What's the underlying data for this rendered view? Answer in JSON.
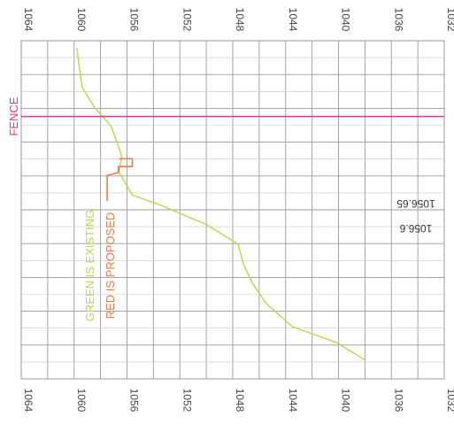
{
  "chart_data": {
    "type": "line",
    "orientation": "elevation-profile rotated 90 degrees (elevation axis across the sheet)",
    "elevation_ticks": [
      1064,
      1060,
      1056,
      1052,
      1048,
      1044,
      1040,
      1036,
      1032
    ],
    "elevation_range": [
      1064,
      1032
    ],
    "station_grid_rows": 10,
    "grid": true,
    "series": [
      {
        "label": "GREEN IS EXISTING",
        "color": "#b5d94a",
        "points": [
          {
            "station": 0.0,
            "elevation": 1059.8
          },
          {
            "station": 2.0,
            "elevation": 1059.4
          },
          {
            "station": 3.0,
            "elevation": 1058.5
          },
          {
            "station": 4.0,
            "elevation": 1057.2
          },
          {
            "station": 5.5,
            "elevation": 1056.4
          },
          {
            "station": 6.35,
            "elevation": 1056.6
          },
          {
            "station": 7.5,
            "elevation": 1055.6
          },
          {
            "station": 8.0,
            "elevation": 1053.5
          },
          {
            "station": 9.0,
            "elevation": 1050.0
          },
          {
            "station": 10.0,
            "elevation": 1047.6
          },
          {
            "station": 11.0,
            "elevation": 1047.2
          },
          {
            "station": 12.0,
            "elevation": 1046.5
          },
          {
            "station": 13.0,
            "elevation": 1045.5
          },
          {
            "station": 14.2,
            "elevation": 1043.5
          },
          {
            "station": 15.0,
            "elevation": 1040.2
          },
          {
            "station": 15.9,
            "elevation": 1038.0
          }
        ]
      },
      {
        "label": "RED IS PROPOSED",
        "color": "#f0784a",
        "points": [
          {
            "station": 5.65,
            "elevation": 1056.6
          },
          {
            "station": 5.65,
            "elevation": 1055.6
          },
          {
            "station": 6.05,
            "elevation": 1055.6
          },
          {
            "station": 6.05,
            "elevation": 1056.65
          },
          {
            "station": 6.35,
            "elevation": 1056.65
          },
          {
            "station": 6.5,
            "elevation": 1057.5
          },
          {
            "station": 7.8,
            "elevation": 1057.5
          }
        ]
      }
    ],
    "annotations": [
      {
        "text": "FENCE",
        "color": "#e8358a",
        "at_station": 3.5
      },
      {
        "text": "1056.65"
      },
      {
        "text": "1056.6"
      }
    ]
  }
}
